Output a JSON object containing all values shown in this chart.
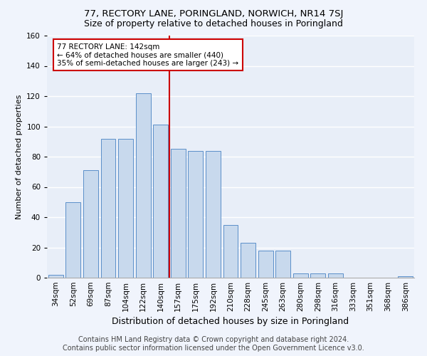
{
  "title1": "77, RECTORY LANE, PORINGLAND, NORWICH, NR14 7SJ",
  "title2": "Size of property relative to detached houses in Poringland",
  "xlabel": "Distribution of detached houses by size in Poringland",
  "ylabel": "Number of detached properties",
  "bar_color": "#c8d9ed",
  "bar_edge_color": "#5b8fc9",
  "categories": [
    "34sqm",
    "52sqm",
    "69sqm",
    "87sqm",
    "104sqm",
    "122sqm",
    "140sqm",
    "157sqm",
    "175sqm",
    "192sqm",
    "210sqm",
    "228sqm",
    "245sqm",
    "263sqm",
    "280sqm",
    "298sqm",
    "316sqm",
    "333sqm",
    "351sqm",
    "368sqm",
    "386sqm"
  ],
  "values": [
    2,
    50,
    71,
    92,
    92,
    122,
    101,
    85,
    84,
    84,
    35,
    23,
    18,
    18,
    3,
    3,
    3,
    0,
    0,
    0,
    1
  ],
  "vline_pos": 6.5,
  "vline_color": "#cc0000",
  "annotation_text": "77 RECTORY LANE: 142sqm\n← 64% of detached houses are smaller (440)\n35% of semi-detached houses are larger (243) →",
  "annotation_box_color": "#ffffff",
  "annotation_box_edge_color": "#cc0000",
  "ylim": [
    0,
    160
  ],
  "footer1": "Contains HM Land Registry data © Crown copyright and database right 2024.",
  "footer2": "Contains public sector information licensed under the Open Government Licence v3.0.",
  "fig_bg_color": "#f0f4fc",
  "axes_bg_color": "#e8eef8",
  "grid_color": "#ffffff",
  "title1_fontsize": 9.5,
  "title2_fontsize": 9,
  "xlabel_fontsize": 9,
  "ylabel_fontsize": 8,
  "tick_fontsize": 7.5,
  "footer_fontsize": 7
}
